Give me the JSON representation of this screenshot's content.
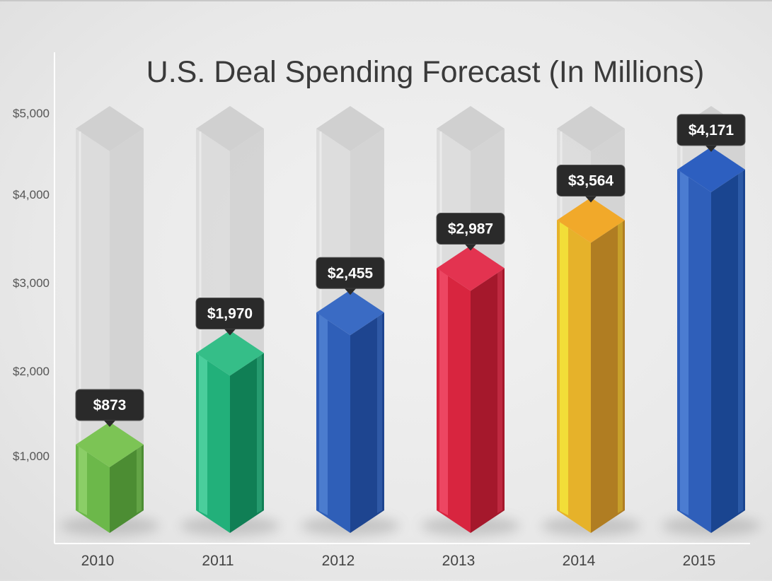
{
  "chart_data": {
    "type": "bar",
    "title": "U.S. Deal Spending Forecast (In Millions)",
    "categories": [
      "2010",
      "2011",
      "2012",
      "2013",
      "2014",
      "2015"
    ],
    "values": [
      873,
      1970,
      2455,
      2987,
      3564,
      4171
    ],
    "value_labels": [
      "$873",
      "$1,970",
      "$2,455",
      "$2,987",
      "$3,564",
      "$4,171"
    ],
    "yticks": [
      {
        "value": 1000,
        "label": "$1,000"
      },
      {
        "value": 2000,
        "label": "$2,000"
      },
      {
        "value": 3000,
        "label": "$3,000"
      },
      {
        "value": 4000,
        "label": "$4,000"
      },
      {
        "value": 5000,
        "label": "$5,000"
      }
    ],
    "ylim": [
      0,
      5000
    ],
    "grid": false,
    "colors": [
      {
        "light": "#8fd06a",
        "mid": "#6cb84a",
        "dark": "#4c8d33",
        "top": "#7cc455"
      },
      {
        "light": "#4fd1a0",
        "mid": "#22b07a",
        "dark": "#107f55",
        "top": "#35be88"
      },
      {
        "light": "#4f7fd0",
        "mid": "#2f5fb8",
        "dark": "#1e4590",
        "top": "#3a6bc4"
      },
      {
        "light": "#f04a66",
        "mid": "#d8253f",
        "dark": "#a5182c",
        "top": "#e33350"
      },
      {
        "light": "#f3e23a",
        "mid": "#e6b22a",
        "dark": "#b07d22",
        "top": "#f1a92a"
      },
      {
        "light": "#4f80d4",
        "mid": "#2f5fba",
        "dark": "#1a4590",
        "top": "#2d5fc0"
      }
    ],
    "ghost_color": "#d4d4d4",
    "label_bg": "#2a2a2a"
  }
}
